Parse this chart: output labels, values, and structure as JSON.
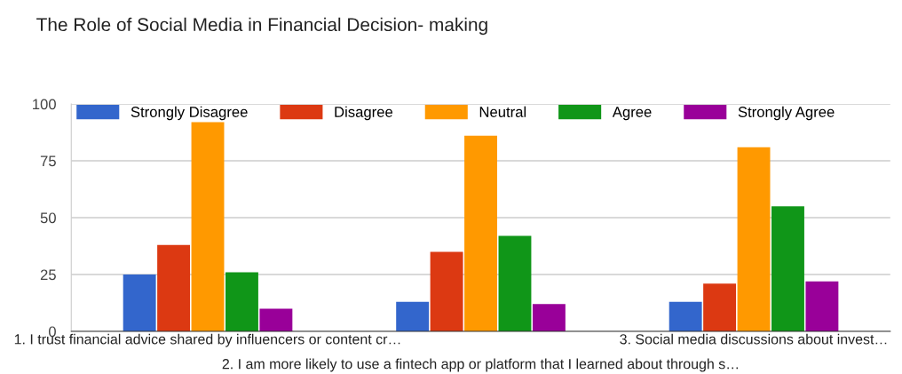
{
  "chart_data": {
    "type": "bar",
    "title": "The Role of Social Media in Financial Decision- making",
    "categories": [
      "1. I trust financial advice shared by influencers or content cr…",
      "2. I am more likely to use a fintech app or platform that I learned about through s…",
      "3. Social media discussions about invest…"
    ],
    "series": [
      {
        "name": "Strongly Disagree",
        "color": "#3366cc",
        "values": [
          25,
          13,
          13
        ]
      },
      {
        "name": "Disagree",
        "color": "#dc3912",
        "values": [
          38,
          35,
          21
        ]
      },
      {
        "name": "Neutral",
        "color": "#ff9900",
        "values": [
          92,
          86,
          81
        ]
      },
      {
        "name": "Agree",
        "color": "#109618",
        "values": [
          26,
          42,
          55
        ]
      },
      {
        "name": "Strongly Agree",
        "color": "#990099",
        "values": [
          10,
          12,
          22
        ]
      }
    ],
    "ylim": [
      0,
      100
    ],
    "yticks": [
      0,
      25,
      50,
      75,
      100
    ],
    "grid": "y",
    "legend": "top"
  }
}
